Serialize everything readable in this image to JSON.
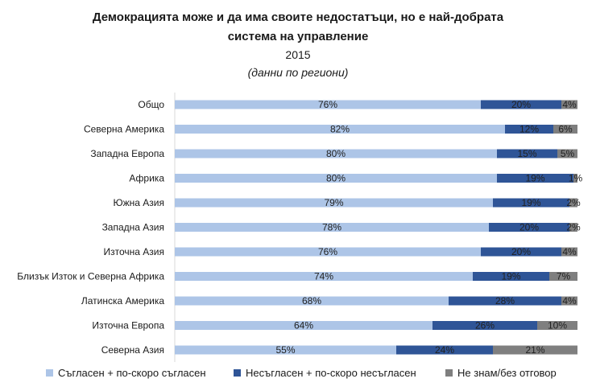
{
  "colors": {
    "agree": "#adc5e7",
    "disagree": "#2f5597",
    "dontknow": "#7f7f7f"
  },
  "chart_data": {
    "type": "bar",
    "orientation": "horizontal",
    "stacked": true,
    "title": "Демокрацията може и да има своите недостатъци, но е най-добрата",
    "title_line2": "система на управление",
    "subtitle": "2015",
    "subtitle2": "(данни по региони)",
    "categories": [
      "Общо",
      "Северна Америка",
      "Западна Европа",
      "Африка",
      "Южна Азия",
      "Западна Азия",
      "Източна Азия",
      "Близък Изток и Северна Африка",
      "Латинска Америка",
      "Източна Европа",
      "Северна Азия"
    ],
    "series": [
      {
        "name": "Съгласен + по-скоро съгласен",
        "color_key": "agree",
        "values": [
          76,
          82,
          80,
          80,
          79,
          78,
          76,
          74,
          68,
          64,
          55
        ]
      },
      {
        "name": "Несъгласен + по-скоро несъгласен",
        "color_key": "disagree",
        "values": [
          20,
          12,
          15,
          19,
          19,
          20,
          20,
          19,
          28,
          26,
          24
        ]
      },
      {
        "name": "Не знам/без отговор",
        "color_key": "dontknow",
        "values": [
          4,
          6,
          5,
          1,
          2,
          2,
          4,
          7,
          4,
          10,
          21
        ]
      }
    ],
    "xlim": [
      0,
      100
    ],
    "data_label_suffix": "%",
    "legend": "bottom"
  }
}
